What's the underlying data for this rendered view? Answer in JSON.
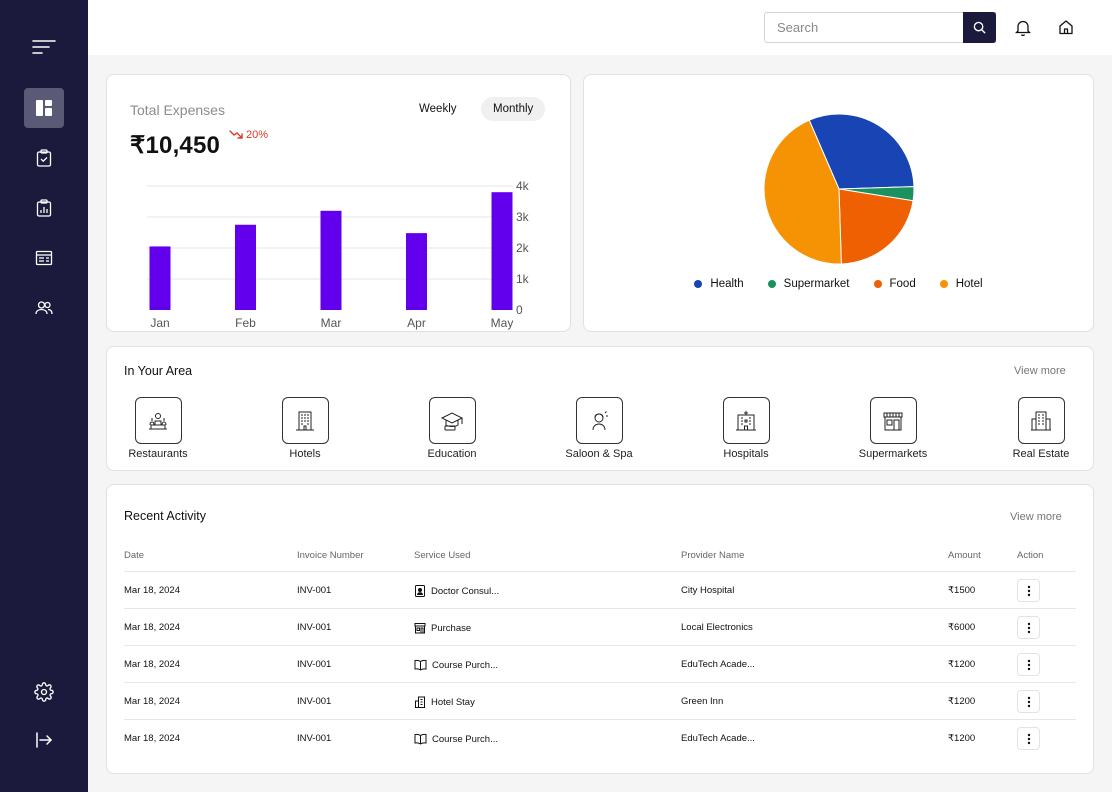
{
  "topbar": {
    "search_placeholder": "Search"
  },
  "expenses": {
    "title": "Total Expenses",
    "toggles": {
      "weekly": "Weekly",
      "monthly": "Monthly",
      "selected": "Monthly"
    },
    "amount": "₹10,450",
    "change": "20%",
    "change_color": "#d83a2c"
  },
  "chart_data": [
    {
      "type": "bar",
      "categories": [
        "Jan",
        "Feb",
        "Mar",
        "Apr",
        "May"
      ],
      "values": [
        2050,
        2750,
        3200,
        2480,
        3800
      ],
      "ylim": [
        0,
        4000
      ],
      "yticks": [
        "0",
        "1k",
        "2k",
        "3k",
        "4k"
      ],
      "color": "#6200ee",
      "grid": true
    },
    {
      "type": "pie",
      "labels": [
        "Health",
        "Supermarket",
        "Food",
        "Hotel"
      ],
      "values": [
        31,
        3,
        22,
        44
      ],
      "colors": [
        "#1845b3",
        "#1c9160",
        "#ee6002",
        "#f59305"
      ],
      "legend": "bottom"
    }
  ],
  "area": {
    "title": "In Your Area",
    "view_more": "View more",
    "items": [
      {
        "label": "Restaurants",
        "icon": "restaurant-icon"
      },
      {
        "label": "Hotels",
        "icon": "hotel-icon"
      },
      {
        "label": "Education",
        "icon": "education-icon"
      },
      {
        "label": "Saloon & Spa",
        "icon": "saloon-icon"
      },
      {
        "label": "Hospitals",
        "icon": "hospital-icon"
      },
      {
        "label": "Supermarkets",
        "icon": "supermarket-icon"
      },
      {
        "label": "Real Estate",
        "icon": "real-estate-icon"
      }
    ]
  },
  "activity": {
    "title": "Recent Activity",
    "view_more": "View more",
    "columns": [
      "Date",
      "Invoice Number",
      "Service Used",
      "Provider Name",
      "Amount",
      "Action"
    ],
    "rows": [
      {
        "date": "Mar 18, 2024",
        "invoice": "INV-001",
        "service": "Doctor Consul...",
        "service_icon": "doctor-icon",
        "provider": "City Hospital",
        "amount": "₹1500"
      },
      {
        "date": "Mar 18, 2024",
        "invoice": "INV-001",
        "service": "Purchase",
        "service_icon": "shop-icon",
        "provider": "Local Electronics",
        "amount": "₹6000"
      },
      {
        "date": "Mar 18, 2024",
        "invoice": "INV-001",
        "service": "Course Purch...",
        "service_icon": "book-icon",
        "provider": "EduTech Acade...",
        "amount": "₹1200"
      },
      {
        "date": "Mar 18, 2024",
        "invoice": "INV-001",
        "service": "Hotel Stay",
        "service_icon": "building-icon",
        "provider": "Green Inn",
        "amount": "₹1200"
      },
      {
        "date": "Mar 18, 2024",
        "invoice": "INV-001",
        "service": "Course Purch...",
        "service_icon": "book-icon",
        "provider": "EduTech Acade...",
        "amount": "₹1200"
      }
    ]
  },
  "sidebar": {
    "items": [
      "menu-icon",
      "dashboard-icon",
      "clipboard-check-icon",
      "clipboard-chart-icon",
      "invoice-icon",
      "users-icon",
      "settings-icon",
      "logout-icon"
    ],
    "active": "dashboard-icon"
  }
}
